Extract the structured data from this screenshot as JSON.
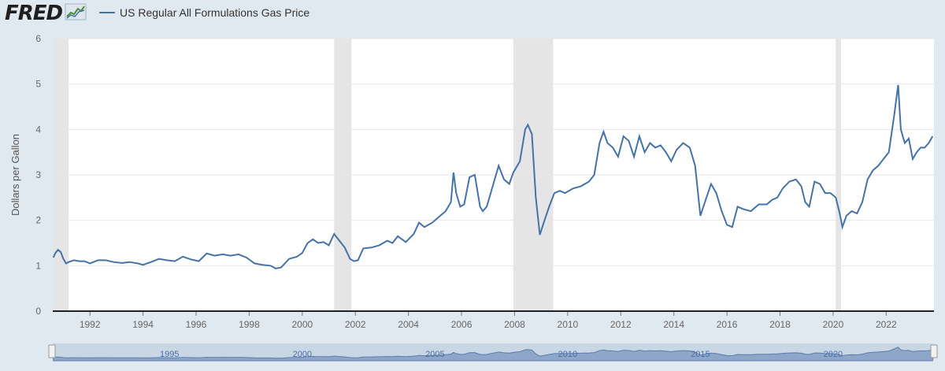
{
  "logo": {
    "text": "FRED",
    "icon": "chart-line-icon"
  },
  "legend": {
    "label": "US Regular All Formulations Gas Price",
    "color": "#4572a7"
  },
  "chart_data": {
    "type": "line",
    "title": "",
    "ylabel": "Dollars per Gallon",
    "ylim": [
      0,
      6
    ],
    "yticks": [
      0,
      1,
      2,
      3,
      4,
      5,
      6
    ],
    "xlim": [
      1990.6,
      2023.8
    ],
    "xticks": [
      "1992",
      "1994",
      "1996",
      "1998",
      "2000",
      "2002",
      "2004",
      "2006",
      "2008",
      "2010",
      "2012",
      "2014",
      "2016",
      "2018",
      "2020",
      "2022"
    ],
    "grid": true,
    "recessions": [
      [
        1990.6,
        1991.2
      ],
      [
        2001.2,
        2001.85
      ],
      [
        2007.95,
        2009.45
      ],
      [
        2020.1,
        2020.3
      ]
    ],
    "series": [
      {
        "name": "US Regular All Formulations Gas Price",
        "color": "#4572a7",
        "x": [
          1990.62,
          1990.7,
          1990.8,
          1990.9,
          1991.0,
          1991.1,
          1991.2,
          1991.4,
          1991.6,
          1991.8,
          1992.0,
          1992.3,
          1992.6,
          1992.9,
          1993.2,
          1993.5,
          1993.8,
          1994.0,
          1994.3,
          1994.6,
          1994.9,
          1995.2,
          1995.5,
          1995.8,
          1996.1,
          1996.4,
          1996.7,
          1997.0,
          1997.3,
          1997.6,
          1997.9,
          1998.2,
          1998.5,
          1998.8,
          1999.0,
          1999.2,
          1999.5,
          1999.8,
          2000.0,
          2000.2,
          2000.4,
          2000.6,
          2000.8,
          2001.0,
          2001.2,
          2001.4,
          2001.6,
          2001.8,
          2001.95,
          2002.1,
          2002.3,
          2002.6,
          2002.9,
          2003.2,
          2003.4,
          2003.6,
          2003.9,
          2004.2,
          2004.4,
          2004.6,
          2004.9,
          2005.2,
          2005.4,
          2005.6,
          2005.7,
          2005.8,
          2005.95,
          2006.1,
          2006.3,
          2006.5,
          2006.7,
          2006.8,
          2006.95,
          2007.1,
          2007.4,
          2007.6,
          2007.8,
          2007.95,
          2008.2,
          2008.4,
          2008.5,
          2008.65,
          2008.8,
          2008.95,
          2009.1,
          2009.3,
          2009.5,
          2009.7,
          2009.9,
          2010.2,
          2010.5,
          2010.8,
          2011.0,
          2011.2,
          2011.35,
          2011.5,
          2011.7,
          2011.9,
          2012.1,
          2012.3,
          2012.5,
          2012.7,
          2012.9,
          2013.1,
          2013.3,
          2013.5,
          2013.7,
          2013.9,
          2014.1,
          2014.35,
          2014.6,
          2014.8,
          2015.0,
          2015.2,
          2015.4,
          2015.6,
          2015.8,
          2016.0,
          2016.2,
          2016.4,
          2016.6,
          2016.9,
          2017.2,
          2017.5,
          2017.7,
          2017.9,
          2018.1,
          2018.35,
          2018.6,
          2018.8,
          2018.95,
          2019.1,
          2019.3,
          2019.5,
          2019.7,
          2019.9,
          2020.1,
          2020.25,
          2020.35,
          2020.5,
          2020.7,
          2020.9,
          2021.1,
          2021.3,
          2021.5,
          2021.7,
          2021.9,
          2022.1,
          2022.3,
          2022.45,
          2022.55,
          2022.7,
          2022.85,
          2023.0,
          2023.15,
          2023.3,
          2023.45,
          2023.6,
          2023.75
        ],
        "y": [
          1.18,
          1.28,
          1.35,
          1.3,
          1.15,
          1.05,
          1.08,
          1.12,
          1.1,
          1.1,
          1.05,
          1.12,
          1.12,
          1.08,
          1.06,
          1.08,
          1.05,
          1.02,
          1.08,
          1.15,
          1.12,
          1.1,
          1.2,
          1.14,
          1.1,
          1.27,
          1.22,
          1.25,
          1.22,
          1.25,
          1.18,
          1.05,
          1.02,
          1.0,
          0.94,
          0.96,
          1.15,
          1.2,
          1.28,
          1.5,
          1.58,
          1.5,
          1.52,
          1.45,
          1.7,
          1.55,
          1.4,
          1.15,
          1.1,
          1.12,
          1.38,
          1.4,
          1.45,
          1.55,
          1.5,
          1.65,
          1.52,
          1.7,
          1.95,
          1.85,
          1.95,
          2.1,
          2.2,
          2.4,
          3.05,
          2.6,
          2.3,
          2.35,
          2.95,
          3.0,
          2.3,
          2.2,
          2.3,
          2.6,
          3.2,
          2.9,
          2.8,
          3.05,
          3.3,
          4.0,
          4.1,
          3.9,
          2.5,
          1.68,
          1.95,
          2.3,
          2.6,
          2.65,
          2.6,
          2.7,
          2.75,
          2.85,
          3.0,
          3.7,
          3.95,
          3.7,
          3.6,
          3.4,
          3.85,
          3.75,
          3.4,
          3.85,
          3.5,
          3.7,
          3.6,
          3.65,
          3.5,
          3.3,
          3.55,
          3.7,
          3.6,
          3.2,
          2.1,
          2.45,
          2.8,
          2.6,
          2.2,
          1.9,
          1.85,
          2.3,
          2.25,
          2.2,
          2.35,
          2.35,
          2.45,
          2.5,
          2.7,
          2.85,
          2.9,
          2.75,
          2.4,
          2.3,
          2.85,
          2.8,
          2.6,
          2.6,
          2.5,
          2.15,
          1.85,
          2.1,
          2.2,
          2.15,
          2.4,
          2.9,
          3.1,
          3.2,
          3.35,
          3.5,
          4.3,
          4.98,
          4.0,
          3.7,
          3.8,
          3.35,
          3.5,
          3.6,
          3.6,
          3.7,
          3.85
        ]
      }
    ]
  },
  "navigator": {
    "labels": [
      "1995",
      "2000",
      "2005",
      "2010",
      "2015",
      "2020"
    ]
  }
}
